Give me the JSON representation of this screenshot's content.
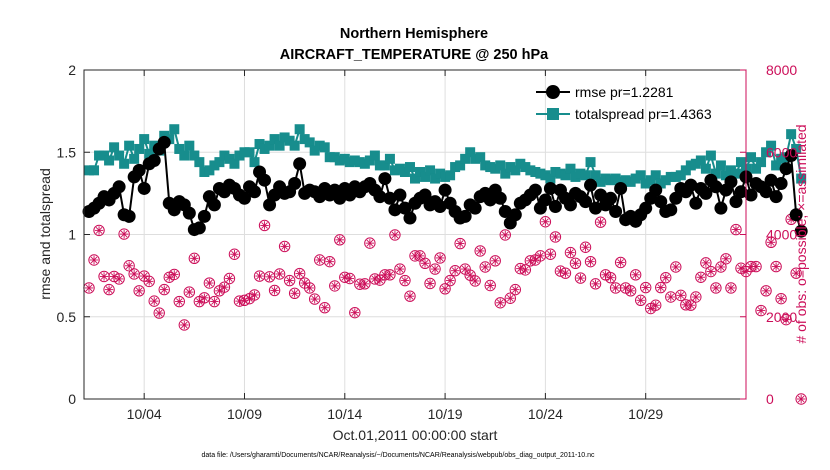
{
  "chart_data": {
    "type": "line",
    "title": "Northern Hemisphere",
    "subtitle": "AIRCRAFT_TEMPERATURE @ 250 hPa",
    "xlabel": "Oct.01,2011 00:00:00 start",
    "ylabel_left": "rmse and totalspread",
    "ylabel_right": "# of obs: o=possible; ×=assimilated",
    "footnote": "data file: /Users/gharamti/Documents/NCAR/Reanalysis/~/Documents/NCAR/Reanalysis/webpub/obs_diag_output_2011-10.nc",
    "grid": true,
    "legend_position": "top-right",
    "xlim": [
      1,
      34
    ],
    "ylim_left": [
      0,
      2
    ],
    "ylim_right": [
      0,
      8000
    ],
    "x_ticks": [
      {
        "value": 4,
        "label": "10/04"
      },
      {
        "value": 9,
        "label": "10/09"
      },
      {
        "value": 14,
        "label": "10/14"
      },
      {
        "value": 19,
        "label": "10/19"
      },
      {
        "value": 24,
        "label": "10/24"
      },
      {
        "value": 29,
        "label": "10/29"
      }
    ],
    "y_ticks_left": [
      {
        "value": 0,
        "label": "0"
      },
      {
        "value": 0.5,
        "label": "0.5"
      },
      {
        "value": 1,
        "label": "1"
      },
      {
        "value": 1.5,
        "label": "1.5"
      },
      {
        "value": 2,
        "label": "2"
      }
    ],
    "y_ticks_right": [
      {
        "value": 0,
        "label": "0"
      },
      {
        "value": 2000,
        "label": "2000"
      },
      {
        "value": 4000,
        "label": "4000"
      },
      {
        "value": 6000,
        "label": "6000"
      },
      {
        "value": 8000,
        "label": "8000"
      }
    ],
    "x_start": 1.25,
    "x_step": 0.25,
    "series": [
      {
        "name": "rmse pr=1.2281",
        "color": "#000000",
        "marker": "circle",
        "axis": "left",
        "values": [
          1.14,
          1.16,
          1.19,
          1.23,
          1.21,
          1.25,
          1.29,
          1.12,
          1.11,
          1.35,
          1.39,
          1.28,
          1.43,
          1.45,
          1.52,
          1.56,
          1.19,
          1.15,
          1.2,
          1.18,
          1.13,
          1.03,
          1.04,
          1.11,
          1.23,
          1.18,
          1.28,
          1.26,
          1.3,
          1.28,
          1.24,
          1.22,
          1.29,
          1.26,
          1.38,
          1.33,
          1.18,
          1.24,
          1.29,
          1.25,
          1.26,
          1.31,
          1.43,
          1.25,
          1.27,
          1.26,
          1.23,
          1.28,
          1.24,
          1.27,
          1.22,
          1.28,
          1.24,
          1.29,
          1.26,
          1.29,
          1.31,
          1.27,
          1.23,
          1.34,
          1.22,
          1.15,
          1.24,
          1.16,
          1.1,
          1.19,
          1.22,
          1.24,
          1.18,
          1.2,
          1.17,
          1.27,
          1.19,
          1.14,
          1.1,
          1.11,
          1.18,
          1.16,
          1.23,
          1.25,
          1.21,
          1.27,
          1.22,
          1.14,
          1.07,
          1.12,
          1.19,
          1.21,
          1.24,
          1.27,
          1.16,
          1.21,
          1.28,
          1.17,
          1.27,
          1.22,
          1.18,
          1.25,
          1.23,
          1.2,
          1.3,
          1.16,
          1.24,
          1.18,
          1.22,
          1.14,
          1.28,
          1.09,
          1.11,
          1.08,
          1.12,
          1.16,
          1.22,
          1.27,
          1.2,
          1.14,
          1.15,
          1.22,
          1.28,
          1.26,
          1.3,
          1.19,
          1.28,
          1.25,
          1.33,
          1.29,
          1.16,
          1.27,
          1.32,
          1.2,
          1.26,
          1.35,
          1.24,
          1.31,
          1.29,
          1.26,
          1.33,
          1.23,
          1.31,
          1.4,
          1.48,
          1.12,
          1.02
        ]
      },
      {
        "name": "totalspread pr=1.4363",
        "color": "#178d8d",
        "marker": "square",
        "axis": "left",
        "values": [
          1.39,
          1.39,
          1.48,
          1.48,
          1.45,
          1.53,
          1.48,
          1.43,
          1.54,
          1.46,
          1.52,
          1.58,
          1.49,
          1.54,
          1.51,
          1.6,
          1.58,
          1.64,
          1.52,
          1.48,
          1.54,
          1.48,
          1.44,
          1.38,
          1.39,
          1.42,
          1.44,
          1.48,
          1.46,
          1.43,
          1.48,
          1.5,
          1.5,
          1.44,
          1.55,
          1.52,
          1.54,
          1.58,
          1.54,
          1.59,
          1.57,
          1.54,
          1.64,
          1.58,
          1.56,
          1.51,
          1.54,
          1.53,
          1.47,
          1.47,
          1.45,
          1.46,
          1.44,
          1.45,
          1.44,
          1.43,
          1.45,
          1.48,
          1.42,
          1.42,
          1.46,
          1.39,
          1.4,
          1.38,
          1.41,
          1.34,
          1.38,
          1.35,
          1.39,
          1.34,
          1.37,
          1.35,
          1.36,
          1.41,
          1.42,
          1.46,
          1.5,
          1.46,
          1.47,
          1.42,
          1.41,
          1.4,
          1.42,
          1.37,
          1.41,
          1.39,
          1.43,
          1.41,
          1.39,
          1.38,
          1.37,
          1.36,
          1.34,
          1.38,
          1.37,
          1.36,
          1.4,
          1.35,
          1.37,
          1.36,
          1.44,
          1.36,
          1.32,
          1.34,
          1.33,
          1.34,
          1.32,
          1.33,
          1.32,
          1.34,
          1.36,
          1.31,
          1.33,
          1.36,
          1.31,
          1.33,
          1.35,
          1.35,
          1.36,
          1.39,
          1.42,
          1.43,
          1.45,
          1.4,
          1.48,
          1.37,
          1.42,
          1.36,
          1.39,
          1.37,
          1.44,
          1.4,
          1.47,
          1.4,
          1.44,
          1.5,
          1.54,
          1.42,
          1.46,
          1.47,
          1.61,
          1.52,
          1.34
        ]
      },
      {
        "name": "possible",
        "color": "#cc0e59",
        "marker": "circle-open",
        "axis": "right",
        "values": [
          2700,
          3380,
          4100,
          2980,
          2660,
          2980,
          2920,
          4010,
          3240,
          3040,
          2630,
          2990,
          2860,
          2380,
          2090,
          2660,
          2960,
          3030,
          2370,
          1800,
          2600,
          3420,
          2370,
          2460,
          2820,
          2370,
          2630,
          2720,
          2930,
          3520,
          2380,
          2400,
          2440,
          2530,
          2990,
          4220,
          2970,
          2640,
          3040,
          3710,
          2880,
          2570,
          3050,
          2820,
          2700,
          2430,
          3380,
          2220,
          3340,
          2750,
          3870,
          2960,
          2930,
          2100,
          2790,
          2800,
          3790,
          2920,
          2890,
          3020,
          3020,
          3990,
          3160,
          2880,
          2500,
          3480,
          3480,
          3300,
          2810,
          3160,
          3430,
          2680,
          2880,
          3120,
          3780,
          3160,
          3010,
          2870,
          3600,
          3210,
          2760,
          3360,
          2340,
          3990,
          2450,
          2660,
          3170,
          3140,
          3360,
          3380,
          3480,
          4310,
          3520,
          3940,
          3110,
          3060,
          3560,
          3300,
          2940,
          3690,
          3340,
          2800,
          4300,
          3020,
          2950,
          2700,
          3320,
          2700,
          2630,
          3020,
          2400,
          2710,
          2200,
          2280,
          2710,
          2950,
          2480,
          3210,
          2520,
          2290,
          2280,
          2480,
          2960,
          3310,
          3100,
          2700,
          3210,
          3410,
          2700,
          4120,
          3180,
          3100,
          3220,
          3220,
          2150,
          2630,
          3810,
          3220,
          2440,
          1930,
          4370,
          3060,
          0
        ]
      },
      {
        "name": "assimilated",
        "color": "#cc0e59",
        "marker": "asterisk",
        "axis": "right",
        "values": [
          2700,
          3380,
          4100,
          2980,
          2660,
          2980,
          2920,
          4010,
          3240,
          3040,
          2630,
          2990,
          2860,
          2380,
          2090,
          2660,
          2960,
          3030,
          2370,
          1800,
          2600,
          3420,
          2370,
          2460,
          2820,
          2370,
          2630,
          2720,
          2930,
          3520,
          2380,
          2400,
          2440,
          2530,
          2990,
          4220,
          2970,
          2640,
          3040,
          3710,
          2880,
          2570,
          3050,
          2820,
          2700,
          2430,
          3380,
          2220,
          3340,
          2750,
          3870,
          2960,
          2930,
          2100,
          2790,
          2800,
          3790,
          2920,
          2890,
          3020,
          3020,
          3990,
          3160,
          2880,
          2500,
          3480,
          3480,
          3300,
          2810,
          3160,
          3430,
          2680,
          2880,
          3120,
          3780,
          3160,
          3010,
          2870,
          3600,
          3210,
          2760,
          3360,
          2340,
          3990,
          2450,
          2660,
          3170,
          3140,
          3360,
          3380,
          3480,
          4310,
          3520,
          3940,
          3110,
          3060,
          3560,
          3300,
          2940,
          3690,
          3340,
          2800,
          4300,
          3020,
          2950,
          2700,
          3320,
          2700,
          2630,
          3020,
          2400,
          2710,
          2200,
          2280,
          2710,
          2950,
          2480,
          3210,
          2520,
          2290,
          2280,
          2480,
          2960,
          3310,
          3100,
          2700,
          3210,
          3410,
          2700,
          4120,
          3180,
          3100,
          3220,
          3220,
          2150,
          2630,
          3810,
          3220,
          2440,
          1930,
          4370,
          3060,
          0
        ]
      }
    ],
    "colors": {
      "left_axis": "#000000",
      "right_axis": "#cc0e59",
      "grid": "#dedede"
    }
  }
}
